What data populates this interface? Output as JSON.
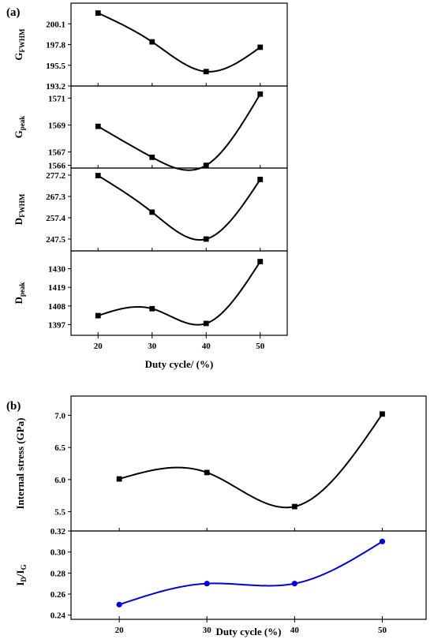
{
  "figure": {
    "panel_a_label": "(a)",
    "panel_b_label": "(b)"
  },
  "chart_data": [
    {
      "type": "line",
      "panel": "(a)",
      "xlabel": "Duty cycle/ (%)",
      "x": [
        20,
        30,
        40,
        50
      ],
      "xticks": [
        20,
        30,
        40,
        50
      ],
      "xlim": [
        15,
        55
      ],
      "grid": false,
      "series": [
        {
          "ylabel_main": "G",
          "ylabel_sub": "FWHM",
          "values": [
            201.3,
            198.1,
            194.8,
            197.5
          ],
          "yticks": [
            193.2,
            195.5,
            197.8,
            200.1
          ],
          "ylim": [
            193.2,
            202.4
          ],
          "color": "#000000",
          "marker": "square"
        },
        {
          "ylabel_main": "G",
          "ylabel_sub": "peak",
          "values": [
            1568.9,
            1566.6,
            1566.0,
            1571.3
          ],
          "yticks": [
            1566,
            1567,
            1569,
            1571
          ],
          "ylim": [
            1565.8,
            1571.9
          ],
          "color": "#000000",
          "marker": "square"
        },
        {
          "ylabel_main": "D",
          "ylabel_sub": "FWHM",
          "values": [
            277.0,
            260.0,
            247.5,
            275.2
          ],
          "yticks": [
            247.5,
            257.4,
            267.3,
            277.2
          ],
          "ylim": [
            242.0,
            280.5
          ],
          "color": "#000000",
          "marker": "square"
        },
        {
          "ylabel_main": "D",
          "ylabel_sub": "peak",
          "values": [
            1402.3,
            1406.4,
            1397.7,
            1434.2
          ],
          "yticks": [
            1397,
            1408,
            1419,
            1430
          ],
          "ylim": [
            1390.7,
            1440.5
          ],
          "color": "#000000",
          "marker": "square"
        }
      ]
    },
    {
      "type": "line",
      "panel": "(b)",
      "xlabel": "Duty cycle (%)",
      "x": [
        20,
        30,
        40,
        50
      ],
      "xticks": [
        20,
        30,
        40,
        50
      ],
      "xlim": [
        14.5,
        55
      ],
      "grid": false,
      "series": [
        {
          "ylabel": "Internal stress (GPa)",
          "values": [
            6.01,
            6.11,
            5.58,
            7.02
          ],
          "yticks": [
            5.5,
            6.0,
            6.5,
            7.0
          ],
          "ylim": [
            5.2,
            7.3
          ],
          "color": "#000000",
          "marker": "square"
        },
        {
          "ylabel_main": "I",
          "ylabel_sub1": "D",
          "ylabel_mid": "/I",
          "ylabel_sub2": "G",
          "values": [
            0.25,
            0.27,
            0.27,
            0.31
          ],
          "yticks": [
            0.24,
            0.26,
            0.28,
            0.3,
            0.32
          ],
          "ylim": [
            0.236,
            0.32
          ],
          "color": "#0000dd",
          "marker": "circle"
        }
      ]
    }
  ]
}
